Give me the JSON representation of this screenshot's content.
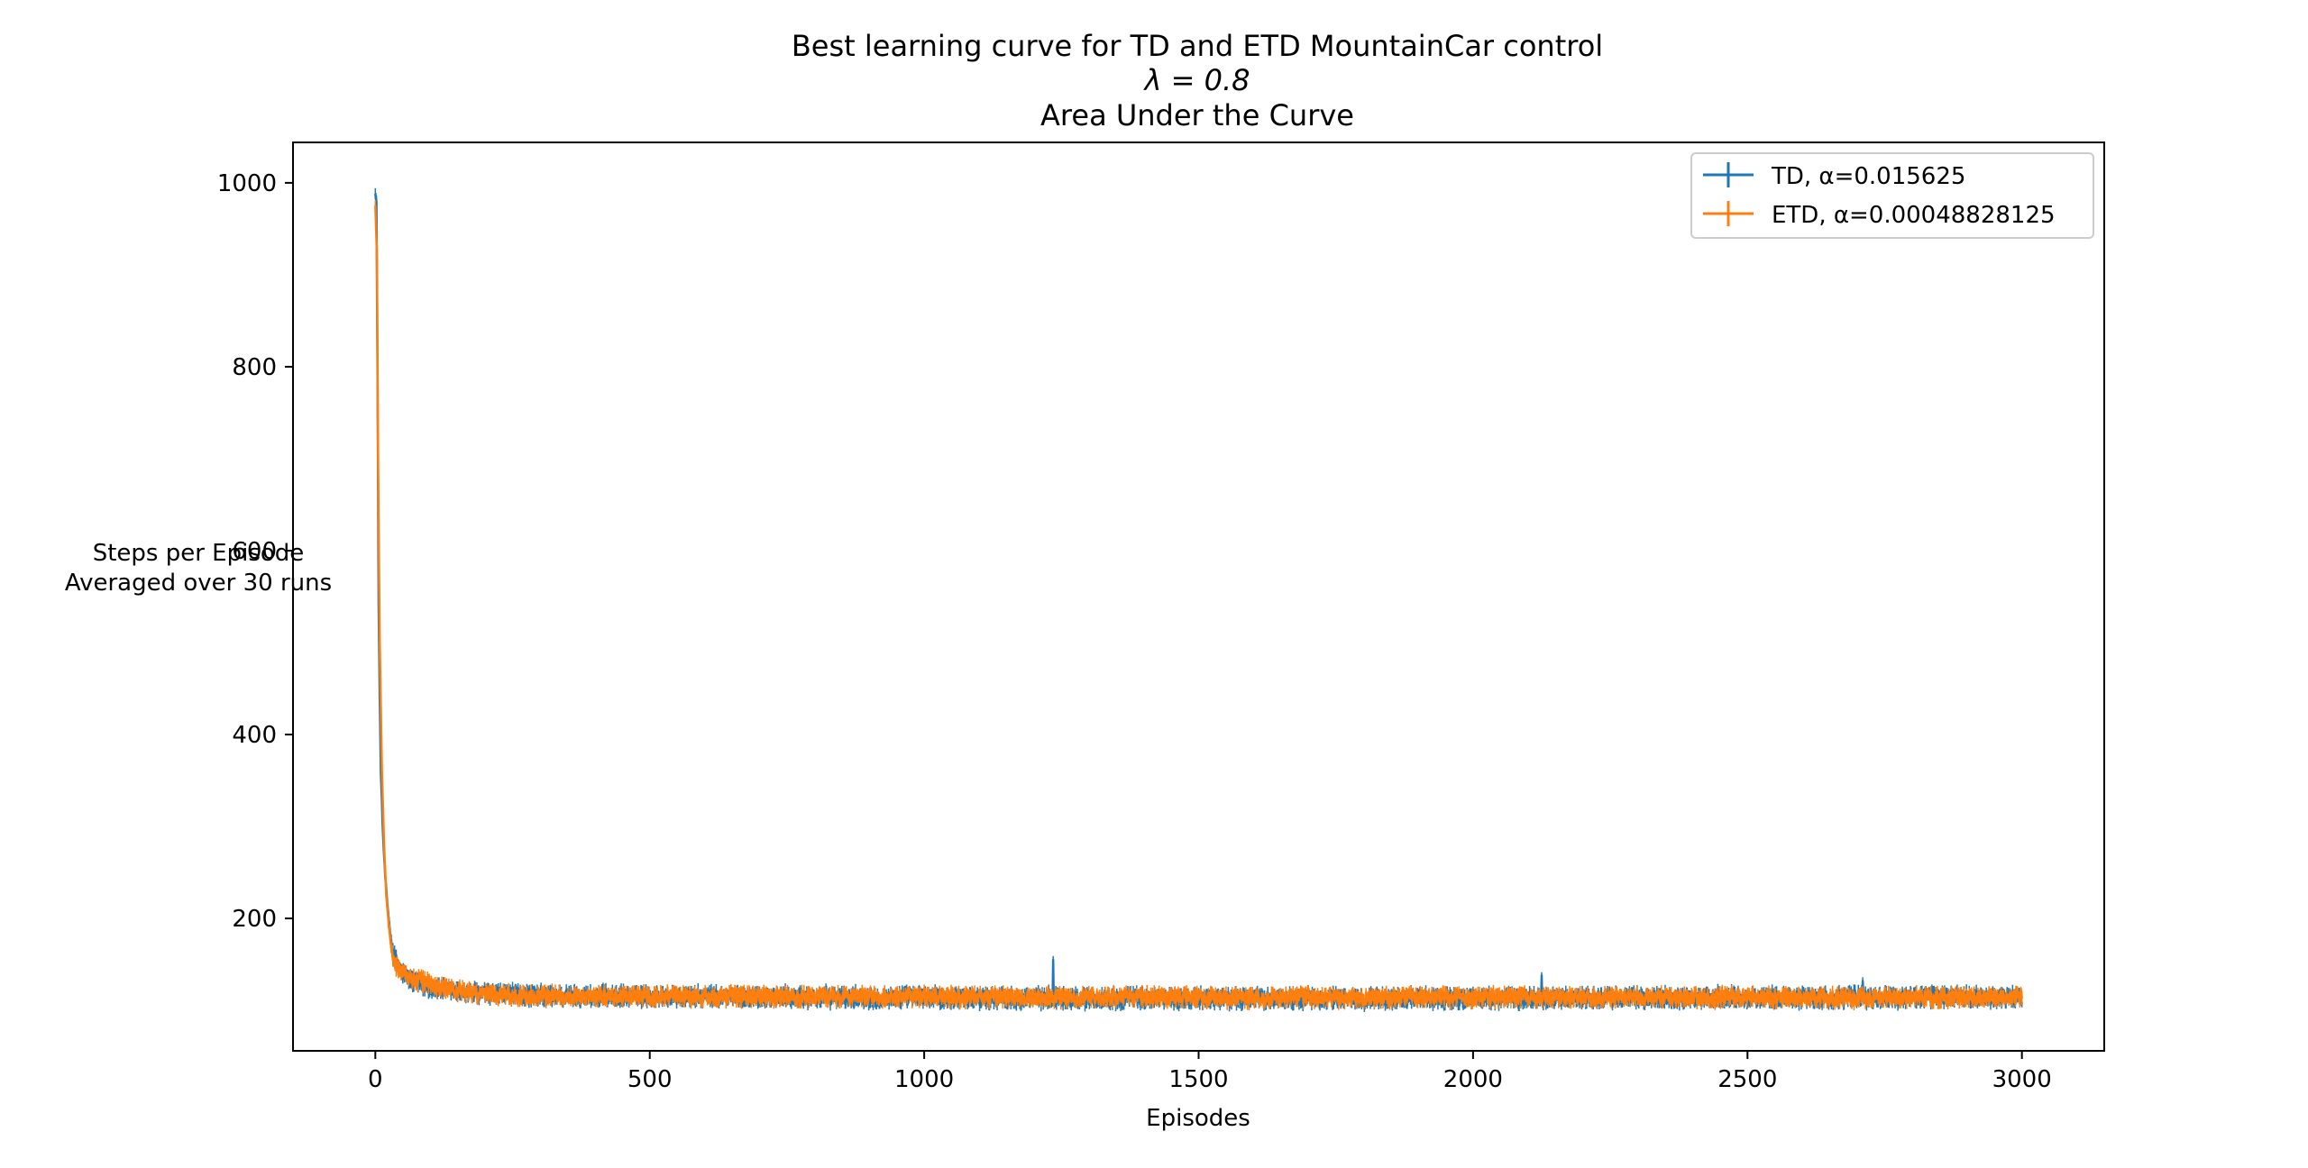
{
  "chart_data": {
    "type": "line",
    "title": [
      "Best learning curve for TD and ETD MountainCar control",
      "λ = 0.8",
      "Area Under the Curve"
    ],
    "xlabel": "Episodes",
    "ylabel": [
      "Steps per Episode",
      "Averaged over 30 runs"
    ],
    "xlim": [
      -150,
      3150
    ],
    "ylim": [
      56,
      1044
    ],
    "xticks": [
      0,
      500,
      1000,
      1500,
      2000,
      2500,
      3000
    ],
    "yticks": [
      200,
      400,
      600,
      800,
      1000
    ],
    "grid": false,
    "legend_position": "top-right",
    "series": [
      {
        "name": "TD, α=0.015625",
        "color": "#1f77b4",
        "points": [
          [
            0,
            990
          ],
          [
            2,
            980
          ],
          [
            4,
            785
          ],
          [
            6,
            540
          ],
          [
            8,
            440
          ],
          [
            10,
            360
          ],
          [
            14,
            290
          ],
          [
            18,
            245
          ],
          [
            22,
            215
          ],
          [
            26,
            190
          ],
          [
            30,
            170
          ],
          [
            35,
            158
          ],
          [
            40,
            150
          ],
          [
            50,
            140
          ],
          [
            60,
            135
          ],
          [
            80,
            128
          ],
          [
            100,
            125
          ],
          [
            150,
            120
          ],
          [
            200,
            118
          ],
          [
            300,
            116
          ],
          [
            500,
            115
          ],
          [
            1000,
            114
          ],
          [
            1500,
            113
          ],
          [
            2000,
            113
          ],
          [
            2500,
            114
          ],
          [
            3000,
            114
          ]
        ],
        "noise": 8,
        "spikes": [
          [
            1235,
            155
          ],
          [
            2125,
            138
          ],
          [
            2710,
            132
          ]
        ]
      },
      {
        "name": "ETD, α=0.00048828125",
        "color": "#ff7f0e",
        "points": [
          [
            0,
            975
          ],
          [
            3,
            920
          ],
          [
            5,
            700
          ],
          [
            8,
            500
          ],
          [
            12,
            360
          ],
          [
            16,
            280
          ],
          [
            20,
            225
          ],
          [
            25,
            190
          ],
          [
            30,
            165
          ],
          [
            35,
            152
          ],
          [
            40,
            147
          ],
          [
            50,
            142
          ],
          [
            60,
            137
          ],
          [
            80,
            132
          ],
          [
            100,
            128
          ],
          [
            150,
            122
          ],
          [
            200,
            118
          ],
          [
            300,
            116
          ],
          [
            500,
            115
          ],
          [
            1000,
            115
          ],
          [
            1500,
            114
          ],
          [
            2000,
            114
          ],
          [
            2500,
            114
          ],
          [
            3000,
            114
          ]
        ],
        "noise": 7,
        "spikes": []
      }
    ]
  }
}
